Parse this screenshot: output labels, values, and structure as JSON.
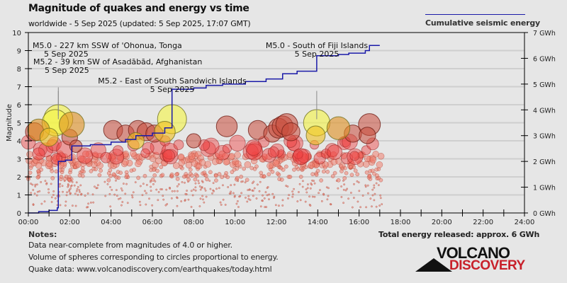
{
  "header": {
    "title": "Magnitude of quakes and energy vs time",
    "subtitle": "worldwide -  5 Sep 2025 (updated: 5 Sep 2025, 17:07 GMT)",
    "legend_label": "Cumulative seismic energy"
  },
  "colors": {
    "background": "#e6e6e6",
    "energy_line": "#1a1aa8",
    "large_quake": "#f5f542",
    "medium_quake": "#c84a3a",
    "small_quake": "#f06060",
    "logo_red": "#c8202a"
  },
  "chart_data": {
    "type": "scatter",
    "title": "Magnitude of quakes and energy vs time",
    "xlabel": "",
    "ylabel": "Magnitude",
    "y2label": "Cumulative seismic energy",
    "xlim": [
      "00:00",
      "24:00"
    ],
    "ylim": [
      0,
      10
    ],
    "y2lim": [
      0,
      7
    ],
    "y2unit": "GWh",
    "grid": true,
    "legend_position": "top-right",
    "x_ticks": [
      "00:00",
      "02:00",
      "04:00",
      "06:00",
      "08:00",
      "10:00",
      "12:00",
      "14:00",
      "16:00",
      "18:00",
      "20:00",
      "22:00",
      "24:00"
    ],
    "y_ticks": [
      "0",
      "1",
      "2",
      "3",
      "4",
      "5",
      "6",
      "7",
      "8",
      "9",
      "10"
    ],
    "y2_ticks": [
      "0 GWh",
      "1 GWh",
      "2 GWh",
      "3 GWh",
      "4 GWh",
      "5 GWh",
      "6 GWh",
      "7 GWh"
    ],
    "annotations": [
      {
        "label": "M5.0 - 227 km SSW of 'Ohonua, Tonga",
        "date": "5 Sep 2025",
        "time_h": 1.45,
        "mag": 5.0
      },
      {
        "label": "M5.2 - 39 km SW of Asadābād, Afghanistan",
        "date": "5 Sep 2025",
        "time_h": 1.45,
        "mag": 5.2
      },
      {
        "label": "M5.2 - East of South Sandwich Islands",
        "date": "5 Sep 2025",
        "time_h": 6.95,
        "mag": 5.2
      },
      {
        "label": "M5.0 - South of Fiji Islands",
        "date": "5 Sep 2025",
        "time_h": 13.95,
        "mag": 5.0
      }
    ],
    "large_quakes": [
      {
        "time_h": 1.45,
        "mag": 5.2
      },
      {
        "time_h": 1.3,
        "mag": 5.0
      },
      {
        "time_h": 6.95,
        "mag": 5.2
      },
      {
        "time_h": 13.95,
        "mag": 5.0
      },
      {
        "time_h": 0.5,
        "mag": 4.6
      },
      {
        "time_h": 1.0,
        "mag": 4.2
      },
      {
        "time_h": 6.6,
        "mag": 4.5
      },
      {
        "time_h": 13.9,
        "mag": 4.3
      },
      {
        "time_h": 2.1,
        "mag": 4.9
      },
      {
        "time_h": 15.0,
        "mag": 4.7
      },
      {
        "time_h": 5.2,
        "mag": 4.0
      }
    ],
    "medium_quakes": [
      {
        "time_h": 0.3,
        "mag": 4.5
      },
      {
        "time_h": 2.0,
        "mag": 4.2
      },
      {
        "time_h": 2.3,
        "mag": 3.7
      },
      {
        "time_h": 4.1,
        "mag": 4.6
      },
      {
        "time_h": 4.7,
        "mag": 4.4
      },
      {
        "time_h": 5.3,
        "mag": 4.6
      },
      {
        "time_h": 5.7,
        "mag": 4.5
      },
      {
        "time_h": 6.1,
        "mag": 4.4
      },
      {
        "time_h": 9.6,
        "mag": 4.8
      },
      {
        "time_h": 11.1,
        "mag": 4.6
      },
      {
        "time_h": 11.8,
        "mag": 4.4
      },
      {
        "time_h": 12.1,
        "mag": 4.7
      },
      {
        "time_h": 12.3,
        "mag": 4.8
      },
      {
        "time_h": 12.5,
        "mag": 4.9
      },
      {
        "time_h": 12.7,
        "mag": 4.5
      },
      {
        "time_h": 15.7,
        "mag": 4.4
      },
      {
        "time_h": 16.5,
        "mag": 4.9
      },
      {
        "time_h": 16.4,
        "mag": 4.3
      },
      {
        "time_h": 8.0,
        "mag": 4.0
      }
    ]
  },
  "notes": {
    "heading": "Notes:",
    "lines": [
      "Data near-complete from magnitudes of 4.0 or higher.",
      "Volume of spheres corresponding to circles proportional to energy.",
      "Quake data: www.volcanodiscovery.com/earthquakes/today.html"
    ]
  },
  "total_energy": "Total energy released: approx. 6 GWh",
  "logo": {
    "top": "VOLCANO",
    "bottom": "DISCOVERY"
  }
}
